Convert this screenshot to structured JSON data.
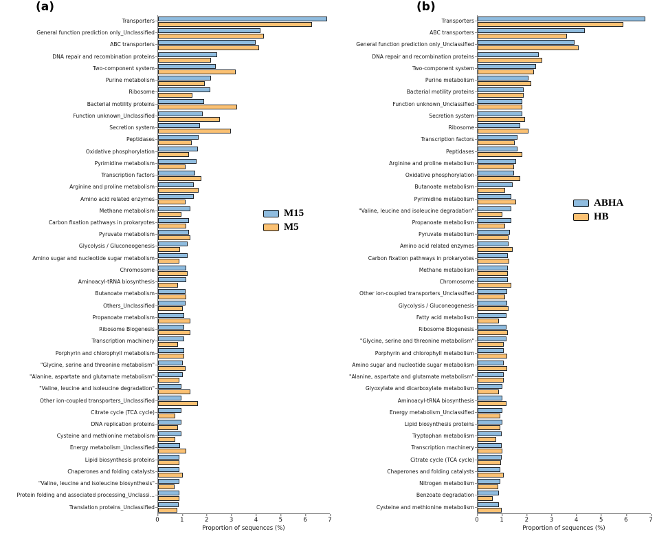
{
  "chart_data": [
    {
      "type": "bar",
      "orientation": "horizontal",
      "panel_label": "(a)",
      "xlabel": "Proportion of sequences (%)",
      "xlim": [
        0,
        7
      ],
      "xticks": [
        0,
        1,
        2,
        3,
        4,
        5,
        6,
        7
      ],
      "grid": false,
      "legend_position": "right-middle",
      "bar_border_color": "#23272d",
      "categories": [
        "Transporters",
        "General function prediction only_Unclassified",
        "ABC transporters",
        "DNA repair and recombination proteins",
        "Two-component system",
        "Purine metabolism",
        "Ribosome",
        "Bacterial motility proteins",
        "Function unknown_Unclassified",
        "Secretion system",
        "Peptidases",
        "Oxidative phosphorylation",
        "Pyrimidine metabolism",
        "Transcription factors",
        "Arginine and proline metabolism",
        "Amino acid related enzymes",
        "Methane metabolism",
        "Carbon fixation pathways in prokaryotes",
        "Pyruvate metabolism",
        "Glycolysis / Gluconeogenesis",
        "Amino sugar and nucleotide sugar metabolism",
        "Chromosome",
        "Aminoacyl-tRNA biosynthesis",
        "Butanoate metabolism",
        "Others_Unclassified",
        "Propanoate metabolism",
        "Ribosome Biogenesis",
        "Transcription machinery",
        "Porphyrin and chlorophyll metabolism",
        "\"Glycine, serine and threonine metabolism\"",
        "\"Alanine, aspartate and glutamate metabolism\"",
        "\"Valine, leucine and isoleucine degradation\"",
        "Other ion-coupled transporters_Unclassified",
        "Citrate cycle (TCA cycle)",
        "DNA replication proteins",
        "Cysteine and methionine metabolism",
        "Energy metabolism_Unclassified",
        "Lipid biosynthesis proteins",
        "Chaperones and folding catalysts",
        "\"Valine, leucine and isoleucine biosynthesis\"",
        "Protein folding and associated processing_Unclassi...",
        "Translation proteins_Unclassified"
      ],
      "series": [
        {
          "name": "M15",
          "color": "#8FBCDF",
          "values": [
            6.8,
            4.1,
            3.9,
            2.35,
            2.3,
            2.1,
            2.05,
            1.8,
            1.75,
            1.65,
            1.6,
            1.55,
            1.5,
            1.45,
            1.4,
            1.4,
            1.25,
            1.2,
            1.2,
            1.15,
            1.15,
            1.1,
            1.1,
            1.05,
            1.05,
            1.0,
            1.0,
            1.0,
            1.0,
            0.95,
            0.95,
            0.9,
            0.9,
            0.9,
            0.9,
            0.9,
            0.85,
            0.8,
            0.8,
            0.8,
            0.8,
            0.78
          ]
        },
        {
          "name": "M5",
          "color": "#FBC173",
          "values": [
            6.2,
            4.25,
            4.05,
            2.1,
            3.1,
            1.85,
            1.35,
            3.15,
            2.45,
            2.9,
            1.3,
            1.2,
            1.05,
            1.7,
            1.6,
            1.05,
            0.9,
            1.1,
            1.25,
            0.85,
            0.8,
            1.15,
            0.75,
            1.1,
            0.95,
            1.25,
            1.25,
            0.75,
            1.0,
            1.05,
            0.8,
            1.25,
            1.55,
            0.65,
            0.75,
            0.65,
            1.1,
            0.8,
            0.95,
            0.6,
            0.8,
            0.72
          ]
        }
      ]
    },
    {
      "type": "bar",
      "orientation": "horizontal",
      "panel_label": "(b)",
      "xlabel": "Proportion of sequences (%)",
      "xlim": [
        0,
        7
      ],
      "xticks": [
        0,
        1,
        2,
        3,
        4,
        5,
        6,
        7
      ],
      "grid": false,
      "legend_position": "right-middle",
      "bar_border_color": "#23272d",
      "categories": [
        "Transporters",
        "ABC transporters",
        "General function prediction only_Unclassified",
        "DNA repair and recombination proteins",
        "Two-component system",
        "Purine metabolism",
        "Bacterial motility proteins",
        "Function unknown_Unclassified",
        "Secretion system",
        "Ribosome",
        "Transcription factors",
        "Peptidases",
        "Arginine and proline metabolism",
        "Oxidative phosphorylation",
        "Butanoate metabolism",
        "Pyrimidine metabolism",
        "\"Valine, leucine and isoleucine degradation\"",
        "Propanoate metabolism",
        "Pyruvate metabolism",
        "Amino acid related enzymes",
        "Carbon fixation pathways in prokaryotes",
        "Methane metabolism",
        "Chromosome",
        "Other ion-coupled transporters_Unclassified",
        "Glycolysis / Gluconeogenesis",
        "Fatty acid metabolism",
        "Ribosome Biogenesis",
        "\"Glycine, serine and threonine metabolism\"",
        "Porphyrin and chlorophyll metabolism",
        "Amino sugar and nucleotide sugar metabolism",
        "\"Alanine, aspartate and glutamate metabolism\"",
        "Glyoxylate and dicarboxylate metabolism",
        "Aminoacyl-tRNA biosynthesis",
        "Energy metabolism_Unclassified",
        "Lipid biosynthesis proteins",
        "Tryptophan metabolism",
        "Transcription machinery",
        "Citrate cycle (TCA cycle)",
        "Chaperones and folding catalysts",
        "Nitrogen metabolism",
        "Benzoate degradation",
        "Cysteine and methionine metabolism"
      ],
      "series": [
        {
          "name": "ABHA",
          "color": "#8FBCDF",
          "values": [
            6.7,
            4.25,
            3.85,
            2.4,
            2.3,
            2.0,
            1.8,
            1.75,
            1.73,
            1.65,
            1.55,
            1.54,
            1.5,
            1.4,
            1.35,
            1.3,
            1.3,
            1.3,
            1.25,
            1.2,
            1.17,
            1.15,
            1.15,
            1.13,
            1.14,
            1.1,
            1.1,
            1.1,
            1.0,
            1.0,
            1.0,
            0.95,
            0.95,
            0.95,
            0.95,
            0.9,
            0.9,
            0.9,
            0.87,
            0.85,
            0.8,
            0.8
          ]
        },
        {
          "name": "HB",
          "color": "#FBC173",
          "values": [
            5.8,
            3.55,
            4.0,
            2.55,
            2.2,
            2.1,
            1.8,
            1.75,
            1.85,
            2.0,
            1.45,
            1.75,
            1.4,
            1.65,
            1.05,
            1.5,
            0.95,
            1.05,
            1.2,
            1.35,
            1.22,
            1.15,
            1.3,
            1.05,
            1.18,
            0.8,
            1.15,
            1.0,
            1.13,
            1.13,
            1.0,
            0.8,
            1.1,
            0.85,
            0.85,
            0.68,
            0.95,
            0.88,
            1.0,
            0.78,
            0.55,
            0.9
          ]
        }
      ]
    }
  ]
}
